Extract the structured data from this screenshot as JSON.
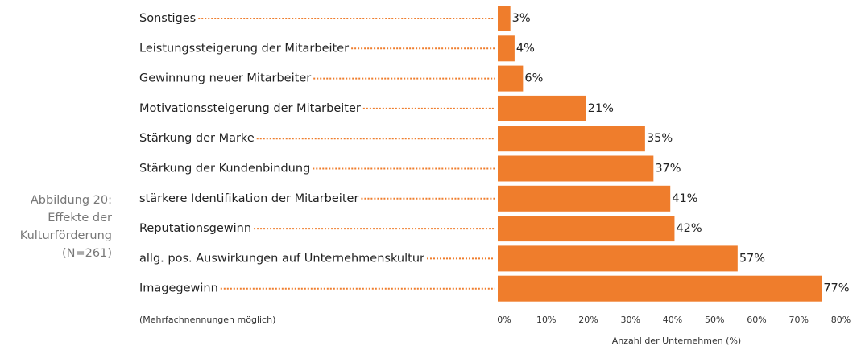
{
  "chart_data": {
    "type": "bar",
    "orientation": "horizontal",
    "caption": [
      "Abbildung 20:",
      "Effekte der",
      "Kulturförderung",
      "(N=261)"
    ],
    "note": "(Mehrfachnennungen möglich)",
    "x_label": "Anzahl der Unternehmen (%)",
    "categories": [
      "Sonstiges",
      "Leistungssteigerung der Mitarbeiter",
      "Gewinnung neuer Mitarbeiter",
      "Motivationssteigerung der Mitarbeiter",
      "Stärkung der Marke",
      "Stärkung der Kundenbindung",
      "stärkere Identifikation der Mitarbeiter",
      "Reputationsgewinn",
      "allg. pos. Auswirkungen auf Unternehmenskultur",
      "Imagegewinn"
    ],
    "values": [
      3,
      4,
      6,
      21,
      35,
      37,
      41,
      42,
      57,
      77
    ],
    "value_labels": [
      "3%",
      "4%",
      "6%",
      "21%",
      "35%",
      "37%",
      "41%",
      "42%",
      "57%",
      "77%"
    ],
    "color": "#ef7d2c",
    "xlim": [
      0,
      80
    ],
    "xticks": [
      {
        "value": 0,
        "label": "0%"
      },
      {
        "value": 10,
        "label": "10%"
      },
      {
        "value": 20,
        "label": "20%"
      },
      {
        "value": 30,
        "label": "30%"
      },
      {
        "value": 40,
        "label": "40%"
      },
      {
        "value": 50,
        "label": "50%"
      },
      {
        "value": 60,
        "label": "60%"
      },
      {
        "value": 70,
        "label": "70%"
      },
      {
        "value": 80,
        "label": "80%"
      }
    ]
  }
}
